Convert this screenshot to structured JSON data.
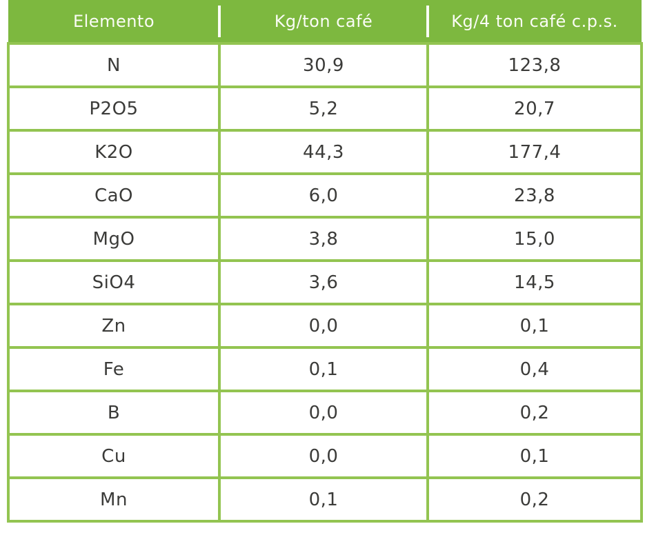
{
  "table": {
    "columns": [
      {
        "label": "Elemento"
      },
      {
        "label": "Kg/ton café"
      },
      {
        "label": "Kg/4 ton café c.p.s."
      }
    ],
    "rows": [
      {
        "element": "N",
        "kg_per_ton": "30,9",
        "kg_per_4ton": "123,8"
      },
      {
        "element": "P2O5",
        "kg_per_ton": "5,2",
        "kg_per_4ton": "20,7"
      },
      {
        "element": "K2O",
        "kg_per_ton": "44,3",
        "kg_per_4ton": "177,4"
      },
      {
        "element": "CaO",
        "kg_per_ton": "6,0",
        "kg_per_4ton": "23,8"
      },
      {
        "element": "MgO",
        "kg_per_ton": "3,8",
        "kg_per_4ton": "15,0"
      },
      {
        "element": "SiO4",
        "kg_per_ton": "3,6",
        "kg_per_4ton": "14,5"
      },
      {
        "element": "Zn",
        "kg_per_ton": "0,0",
        "kg_per_4ton": "0,1"
      },
      {
        "element": "Fe",
        "kg_per_ton": "0,1",
        "kg_per_4ton": "0,4"
      },
      {
        "element": "B",
        "kg_per_ton": "0,0",
        "kg_per_4ton": "0,2"
      },
      {
        "element": "Cu",
        "kg_per_ton": "0,0",
        "kg_per_4ton": "0,1"
      },
      {
        "element": "Mn",
        "kg_per_ton": "0,1",
        "kg_per_4ton": "0,2"
      }
    ]
  },
  "colors": {
    "header_green": "#7db83f",
    "border_green": "#93c451",
    "header_text": "#fafcf5",
    "body_text": "#3b3b39",
    "background": "#ffffff"
  }
}
